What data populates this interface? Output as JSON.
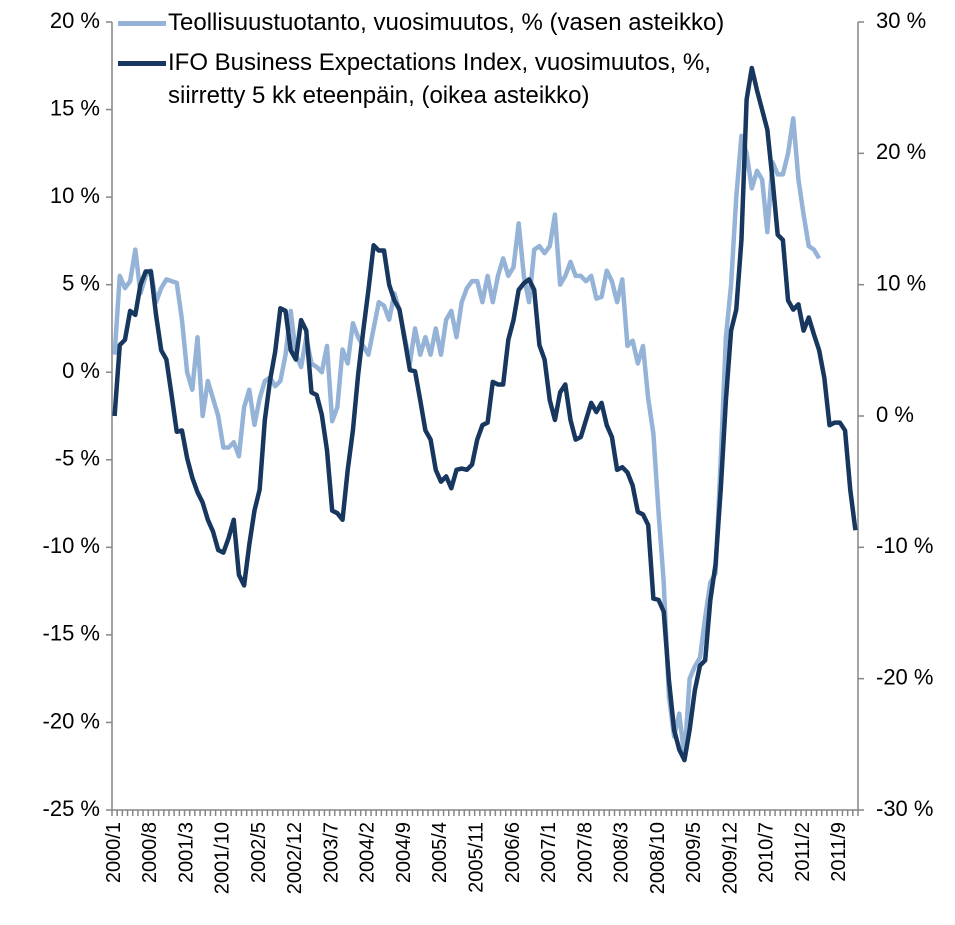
{
  "chart_data": {
    "type": "line",
    "categories": [
      "2000/1",
      null,
      null,
      null,
      null,
      null,
      null,
      "2000/8",
      null,
      null,
      null,
      null,
      null,
      null,
      "2001/3",
      null,
      null,
      null,
      null,
      null,
      null,
      "2001/10",
      null,
      null,
      null,
      null,
      null,
      null,
      "2002/5",
      null,
      null,
      null,
      null,
      null,
      null,
      "2002/12",
      null,
      null,
      null,
      null,
      null,
      null,
      "2003/7",
      null,
      null,
      null,
      null,
      null,
      null,
      "2004/2",
      null,
      null,
      null,
      null,
      null,
      null,
      "2004/9",
      null,
      null,
      null,
      null,
      null,
      null,
      "2005/4",
      null,
      null,
      null,
      null,
      null,
      null,
      "2005/11",
      null,
      null,
      null,
      null,
      null,
      null,
      "2006/6",
      null,
      null,
      null,
      null,
      null,
      null,
      "2007/1",
      null,
      null,
      null,
      null,
      null,
      null,
      "2007/8",
      null,
      null,
      null,
      null,
      null,
      null,
      "2008/3",
      null,
      null,
      null,
      null,
      null,
      null,
      "2008/10",
      null,
      null,
      null,
      null,
      null,
      null,
      "2009/5",
      null,
      null,
      null,
      null,
      null,
      null,
      "2009/12",
      null,
      null,
      null,
      null,
      null,
      null,
      "2010/7",
      null,
      null,
      null,
      null,
      null,
      null,
      "2011/2",
      null,
      null,
      null,
      null,
      null,
      null,
      "2011/9",
      null,
      null,
      null
    ],
    "series": [
      {
        "name": "Teollisuustuotanto, vuosimuutos, % (vasen asteikko)",
        "color": "#95b3d7",
        "axis": "y",
        "values": [
          1,
          5.5,
          4.8,
          5.2,
          7,
          4.5,
          5.5,
          5.8,
          4,
          4.8,
          5.3,
          5.2,
          5.1,
          3,
          0,
          -1,
          2,
          -2.5,
          -0.5,
          -1.5,
          -2.5,
          -4.3,
          -4.3,
          -4,
          -4.8,
          -2,
          -1,
          -3,
          -1.5,
          -0.5,
          -0.3,
          -0.8,
          -0.5,
          1,
          3.5,
          1,
          0.3,
          2,
          0.5,
          0.3,
          0,
          1.5,
          -2.8,
          -2,
          1.3,
          0.5,
          2.8,
          2,
          1.5,
          1,
          2.5,
          4,
          3.8,
          3,
          4.5,
          3.5,
          2,
          0.5,
          2.5,
          1,
          2,
          1,
          2.5,
          1,
          3,
          3.5,
          2,
          4,
          4.8,
          5.2,
          5.2,
          4,
          5.5,
          4,
          5.5,
          6.5,
          5.5,
          6,
          8.5,
          5.5,
          4,
          7,
          7.2,
          6.8,
          7.2,
          9,
          5,
          5.5,
          6.3,
          5.5,
          5.5,
          5.2,
          5.5,
          4.2,
          4.3,
          5.8,
          5.2,
          4,
          5.3,
          1.5,
          1.8,
          0.5,
          1.5,
          -1.5,
          -3.5,
          -8,
          -12,
          -18.5,
          -20.8,
          -19.5,
          -22,
          -17.5,
          -16.8,
          -16.3,
          -14,
          -12,
          -11.5,
          -5,
          2,
          5,
          10,
          13.5,
          12.5,
          10.5,
          11.5,
          11,
          8,
          12,
          11.3,
          11.3,
          12.5,
          14.5,
          11,
          9,
          7.2,
          7,
          6.5,
          null,
          null,
          null,
          null,
          null,
          null,
          null
        ]
      },
      {
        "name": "IFO Business Expectations Index, vuosimuutos, %, siirretty 5 kk eteenpäin, (oikea asteikko)",
        "color": "#17375e",
        "axis": "y2",
        "values": [
          0,
          5.4,
          5.8,
          8,
          7.7,
          10,
          11,
          11,
          7.7,
          5,
          4.3,
          1.6,
          -1.2,
          -1.1,
          -3.2,
          -4.7,
          -5.8,
          -6.6,
          -7.9,
          -8.8,
          -10.2,
          -10.4,
          -9.3,
          -7.9,
          -12.1,
          -12.9,
          -9.8,
          -7.2,
          -5.6,
          -0.3,
          2.7,
          4.9,
          8.2,
          8,
          5,
          4.3,
          7.3,
          6.5,
          1.8,
          1.6,
          0.1,
          -2.6,
          -7.2,
          -7.4,
          -7.9,
          -4.1,
          -1.1,
          3.1,
          6.5,
          9.6,
          13,
          12.6,
          12.6,
          10,
          8.8,
          8.1,
          5.8,
          3.5,
          3.4,
          1.2,
          -1.1,
          -1.8,
          -4.1,
          -5,
          -4.6,
          -5.5,
          -4.1,
          -4,
          -4.1,
          -3.7,
          -1.8,
          -0.7,
          -0.5,
          2.6,
          2.4,
          2.4,
          5.8,
          7.3,
          9.6,
          10.1,
          10.4,
          9.6,
          5.4,
          4.3,
          1.2,
          -0.3,
          1.8,
          2.4,
          -0.3,
          -1.8,
          -1.6,
          -0.3,
          1,
          0.3,
          1,
          -0.7,
          -1.6,
          -4.1,
          -3.9,
          -4.3,
          -5.3,
          -7.3,
          -7.5,
          -8.3,
          -13.9,
          -14,
          -14.9,
          -20.1,
          -23.9,
          -25.4,
          -26.2,
          -23.9,
          -20.9,
          -19,
          -18.6,
          -14,
          -11.3,
          -5.6,
          1.2,
          6.5,
          8.1,
          13.4,
          24.1,
          26.5,
          24.8,
          23.3,
          21.8,
          18,
          13.8,
          13.4,
          8.8,
          8.1,
          8.5,
          6.5,
          7.5,
          6.2,
          5,
          2.9,
          -0.7,
          -0.5,
          -0.5,
          -1.1,
          -5.6,
          -8.7
        ]
      }
    ],
    "ylim": [
      -25,
      20
    ],
    "yticks": [
      {
        "value": -25,
        "label": "-25 %"
      },
      {
        "value": -20,
        "label": "-20 %"
      },
      {
        "value": -15,
        "label": "-15 %"
      },
      {
        "value": -10,
        "label": "-10 %"
      },
      {
        "value": -5,
        "label": "-5 %"
      },
      {
        "value": 0,
        "label": "0 %"
      },
      {
        "value": 5,
        "label": "5 %"
      },
      {
        "value": 10,
        "label": "10 %"
      },
      {
        "value": 15,
        "label": "15 %"
      },
      {
        "value": 20,
        "label": "20 %"
      }
    ],
    "y2lim": [
      -30,
      30
    ],
    "y2ticks": [
      {
        "value": -30,
        "label": "-30 %"
      },
      {
        "value": -20,
        "label": "-20 %"
      },
      {
        "value": -10,
        "label": "-10 %"
      },
      {
        "value": 0,
        "label": "0 %"
      },
      {
        "value": 10,
        "label": "10 %"
      },
      {
        "value": 20,
        "label": "20 %"
      },
      {
        "value": 30,
        "label": "30 %"
      }
    ],
    "grid": false,
    "legend": "top-left"
  }
}
